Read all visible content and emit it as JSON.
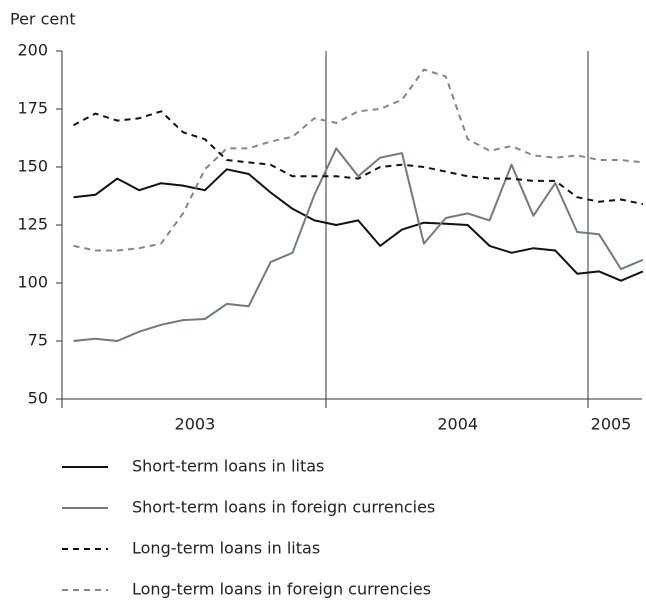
{
  "chart_data": {
    "type": "line",
    "y_label": "Per cent",
    "categories": [
      null,
      null,
      null,
      null,
      null,
      null,
      "2003",
      null,
      null,
      null,
      null,
      null,
      null,
      null,
      null,
      null,
      null,
      null,
      "2004",
      null,
      null,
      null,
      null,
      null,
      null,
      "2005",
      null
    ],
    "series": [
      {
        "name": "Short-term loans in litas",
        "color": "#111111",
        "dash": "solid",
        "values": [
          137,
          138,
          145,
          140,
          143,
          142,
          140,
          149,
          147,
          139,
          132,
          127,
          125,
          127,
          116,
          123,
          126,
          125.5,
          125,
          116,
          113,
          115,
          114,
          104,
          105,
          101,
          105
        ]
      },
      {
        "name": "Short-term loans in foreign currencies",
        "color": "#6f7d78",
        "dash": "solid",
        "values": [
          75,
          76,
          75,
          79,
          82,
          84,
          84.5,
          91,
          90,
          109,
          113,
          138,
          158,
          146,
          154,
          156,
          117,
          128,
          130,
          127,
          151,
          129,
          143,
          122,
          121,
          106,
          110
        ]
      },
      {
        "name": "Long-term loans in litas",
        "color": "#111111",
        "dash": "dashed",
        "values": [
          168,
          173,
          170,
          171,
          174,
          165,
          162,
          153,
          152,
          151,
          146,
          146,
          146,
          145,
          150,
          151,
          150,
          148,
          146,
          145,
          145,
          144,
          144,
          137,
          135,
          136,
          134
        ]
      },
      {
        "name": "Long-term loans in foreign currencies",
        "color": "#7f8a86",
        "dash": "dashed",
        "values": [
          116,
          114,
          114,
          115,
          117,
          130,
          149,
          158,
          158,
          161,
          163,
          171,
          169,
          174,
          175,
          179,
          192,
          189,
          162,
          157,
          159,
          155,
          154,
          155,
          153,
          153,
          152
        ]
      }
    ],
    "ylim": [
      50,
      200
    ],
    "yticks": [
      50,
      75,
      100,
      125,
      150,
      175,
      200
    ]
  }
}
